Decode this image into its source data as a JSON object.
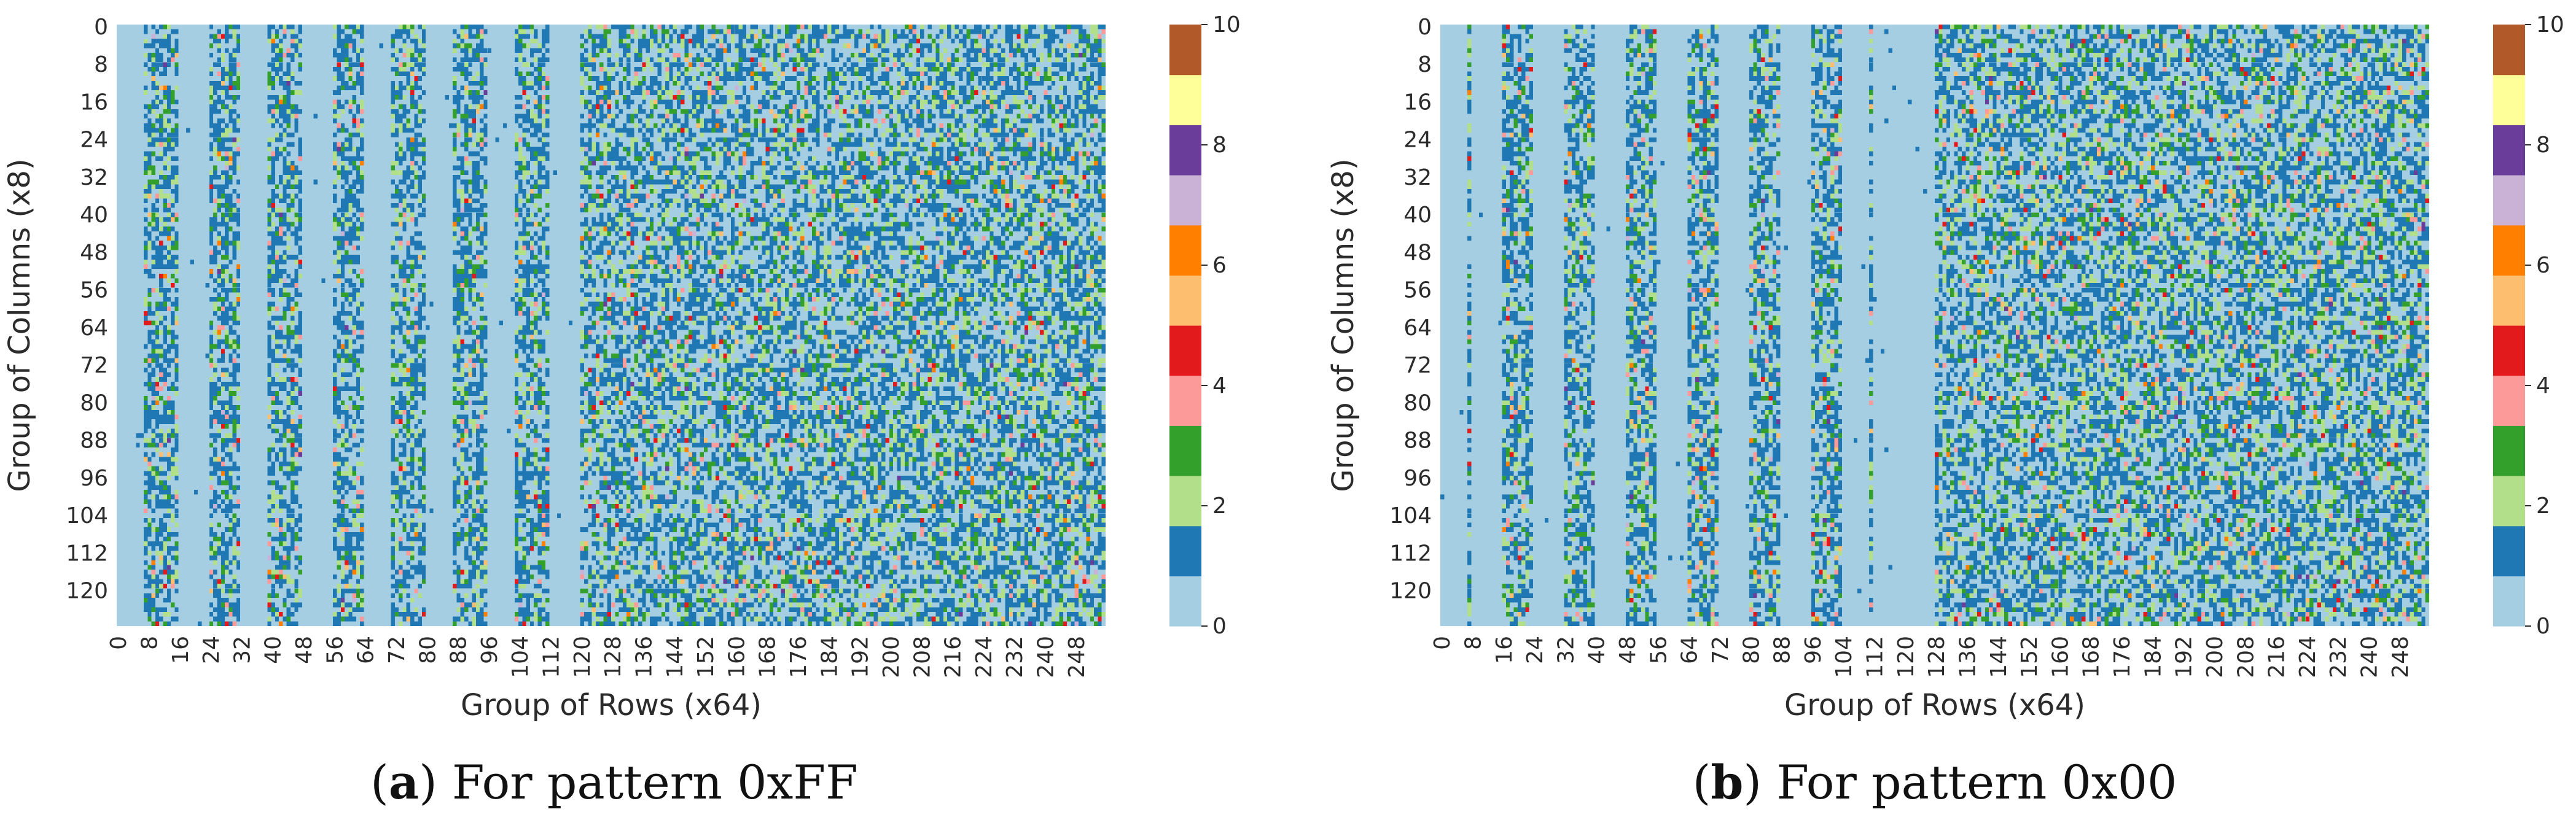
{
  "chart_data": [
    {
      "type": "heatmap",
      "caption_letter": "a",
      "caption_text": ") For pattern 0xFF",
      "caption_open": "(",
      "xlabel": "Group of Rows (x64)",
      "ylabel": "Group of Columns (x8)",
      "x_range": [
        0,
        256
      ],
      "y_range": [
        0,
        128
      ],
      "x_ticks": [
        0,
        8,
        16,
        24,
        32,
        40,
        48,
        56,
        64,
        72,
        80,
        88,
        96,
        104,
        112,
        120,
        128,
        136,
        144,
        152,
        160,
        168,
        176,
        184,
        192,
        200,
        208,
        216,
        224,
        232,
        240,
        248
      ],
      "y_ticks": [
        0,
        8,
        16,
        24,
        32,
        40,
        48,
        56,
        64,
        72,
        80,
        88,
        96,
        104,
        112,
        120
      ],
      "colorbar": {
        "min": 0,
        "max": 10,
        "ticks": [
          0,
          2,
          4,
          6,
          8,
          10
        ]
      },
      "empty_columns": [
        [
          0,
          7
        ],
        [
          16,
          24
        ],
        [
          32,
          39
        ],
        [
          48,
          56
        ],
        [
          64,
          71
        ],
        [
          80,
          87
        ],
        [
          96,
          103
        ],
        [
          112,
          120
        ]
      ],
      "noisy_start": 120
    },
    {
      "type": "heatmap",
      "caption_letter": "b",
      "caption_text": ") For pattern 0x00",
      "caption_open": "(",
      "xlabel": "Group of Rows (x64)",
      "ylabel": "Group of Columns (x8)",
      "x_range": [
        0,
        256
      ],
      "y_range": [
        0,
        128
      ],
      "x_ticks": [
        0,
        8,
        16,
        24,
        32,
        40,
        48,
        56,
        64,
        72,
        80,
        88,
        96,
        104,
        112,
        120,
        128,
        136,
        144,
        152,
        160,
        168,
        176,
        184,
        192,
        200,
        208,
        216,
        224,
        232,
        240,
        248
      ],
      "y_ticks": [
        0,
        8,
        16,
        24,
        32,
        40,
        48,
        56,
        64,
        72,
        80,
        88,
        96,
        104,
        112,
        120
      ],
      "colorbar": {
        "min": 0,
        "max": 10,
        "ticks": [
          0,
          2,
          4,
          6,
          8,
          10
        ]
      },
      "empty_columns": [
        [
          0,
          7
        ],
        [
          8,
          16
        ],
        [
          24,
          32
        ],
        [
          40,
          48
        ],
        [
          56,
          64
        ],
        [
          72,
          80
        ],
        [
          88,
          96
        ],
        [
          104,
          111
        ],
        [
          112,
          120
        ],
        [
          120,
          128
        ]
      ],
      "noisy_start": 128
    }
  ],
  "palette": [
    "#a6cee3",
    "#1f78b4",
    "#b2df8a",
    "#33a02c",
    "#fb9a99",
    "#e31a1c",
    "#fdbf6f",
    "#ff7f00",
    "#cab2d6",
    "#6a3d9a",
    "#ffff99",
    "#b15928"
  ]
}
